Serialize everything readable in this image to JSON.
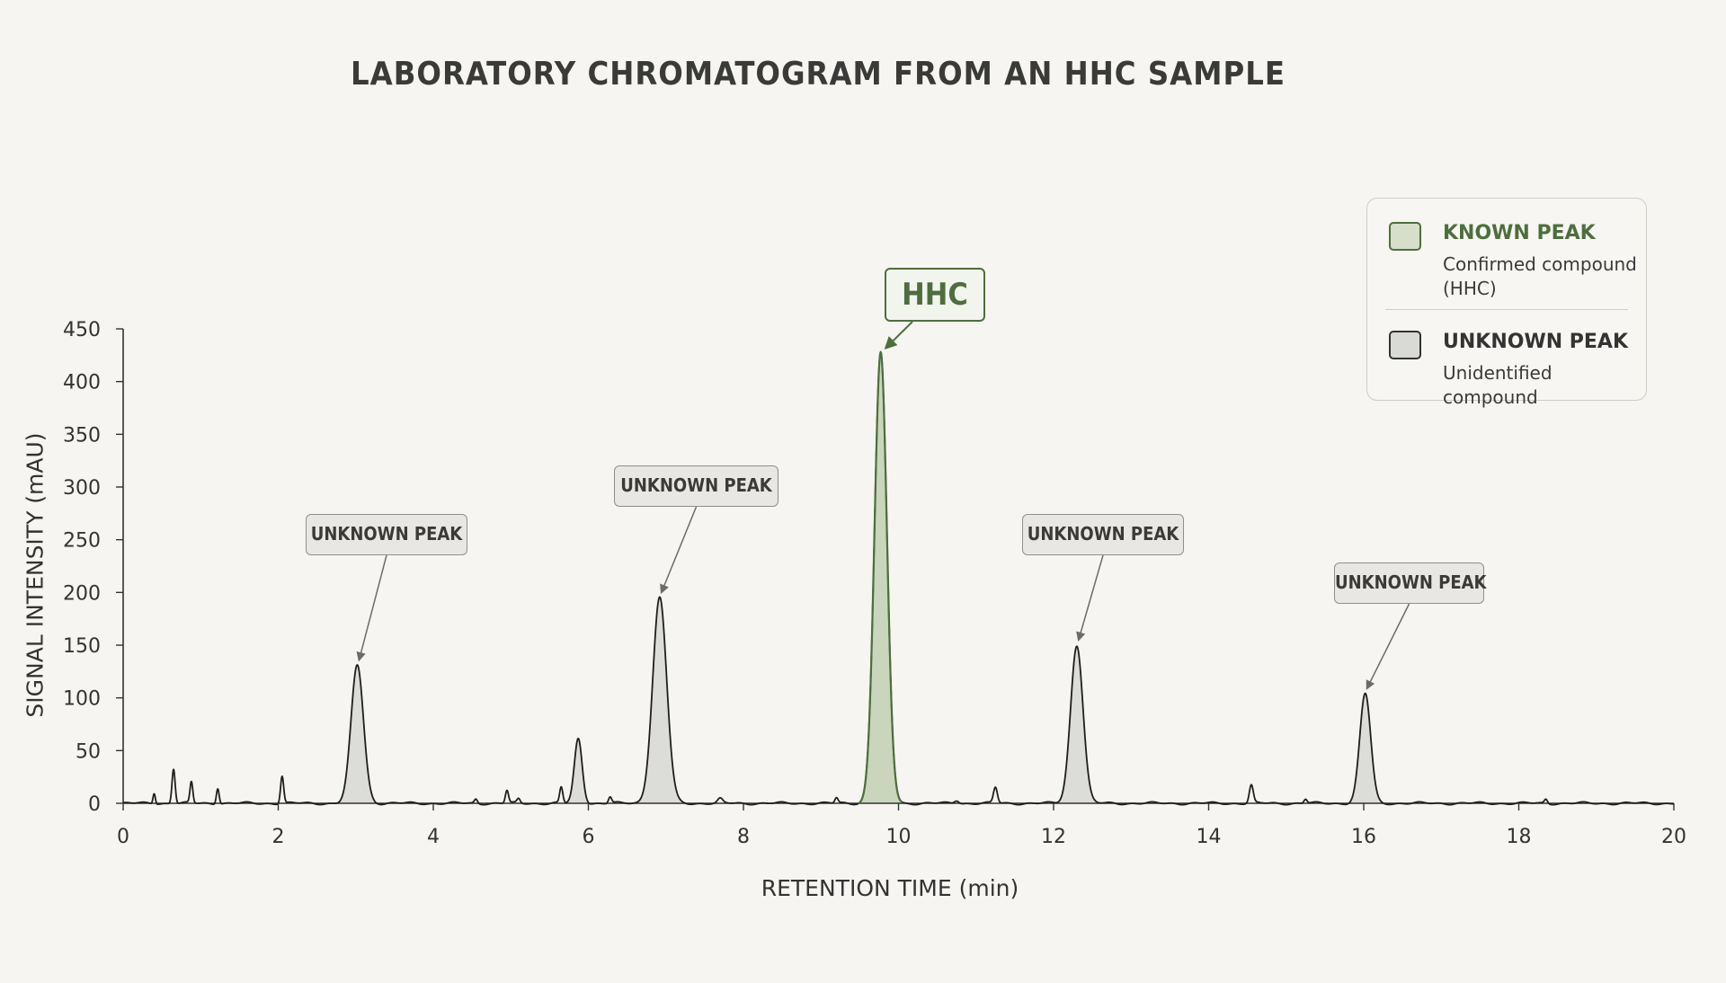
{
  "chart_data": {
    "type": "line",
    "title": "LABORATORY CHROMATOGRAM FROM AN HHC SAMPLE",
    "xlabel": "RETENTION TIME (min)",
    "ylabel": "SIGNAL INTENSITY (mAU)",
    "xlim": [
      0,
      20
    ],
    "ylim": [
      0,
      450
    ],
    "x_ticks": [
      "0",
      "2",
      "4",
      "6",
      "8",
      "10",
      "12",
      "14",
      "16",
      "18",
      "20"
    ],
    "y_ticks": [
      "0",
      "50",
      "100",
      "150",
      "200",
      "250",
      "300",
      "350",
      "400",
      "450"
    ],
    "grid": false,
    "legend_position": "top-right",
    "peaks": [
      {
        "rt": 0.4,
        "height": 10,
        "width": 0.015,
        "kind": "minor"
      },
      {
        "rt": 0.65,
        "height": 33,
        "width": 0.02,
        "kind": "minor"
      },
      {
        "rt": 0.88,
        "height": 20,
        "width": 0.018,
        "kind": "minor"
      },
      {
        "rt": 1.22,
        "height": 15,
        "width": 0.018,
        "kind": "minor"
      },
      {
        "rt": 2.05,
        "height": 26,
        "width": 0.02,
        "kind": "minor"
      },
      {
        "rt": 3.02,
        "height": 131,
        "width": 0.08,
        "kind": "unknown"
      },
      {
        "rt": 4.55,
        "height": 4,
        "width": 0.02,
        "kind": "minor"
      },
      {
        "rt": 4.95,
        "height": 12,
        "width": 0.02,
        "kind": "minor"
      },
      {
        "rt": 5.1,
        "height": 4,
        "width": 0.02,
        "kind": "minor"
      },
      {
        "rt": 5.65,
        "height": 15,
        "width": 0.02,
        "kind": "minor"
      },
      {
        "rt": 5.87,
        "height": 61,
        "width": 0.05,
        "kind": "minor"
      },
      {
        "rt": 6.28,
        "height": 6,
        "width": 0.02,
        "kind": "minor"
      },
      {
        "rt": 6.92,
        "height": 195,
        "width": 0.09,
        "kind": "unknown"
      },
      {
        "rt": 7.7,
        "height": 4,
        "width": 0.03,
        "kind": "minor"
      },
      {
        "rt": 9.2,
        "height": 5,
        "width": 0.02,
        "kind": "minor"
      },
      {
        "rt": 9.77,
        "height": 427,
        "width": 0.08,
        "kind": "known"
      },
      {
        "rt": 10.75,
        "height": 3,
        "width": 0.03,
        "kind": "minor"
      },
      {
        "rt": 11.25,
        "height": 15,
        "width": 0.025,
        "kind": "minor"
      },
      {
        "rt": 12.3,
        "height": 150,
        "width": 0.08,
        "kind": "unknown"
      },
      {
        "rt": 14.55,
        "height": 17,
        "width": 0.025,
        "kind": "minor"
      },
      {
        "rt": 15.25,
        "height": 4,
        "width": 0.02,
        "kind": "minor"
      },
      {
        "rt": 16.02,
        "height": 104,
        "width": 0.07,
        "kind": "unknown"
      },
      {
        "rt": 18.35,
        "height": 4,
        "width": 0.02,
        "kind": "minor"
      }
    ],
    "annotations": [
      {
        "text": "UNKNOWN PEAK",
        "x": 3.02,
        "y": 131,
        "kind": "unknown"
      },
      {
        "text": "UNKNOWN PEAK",
        "x": 6.92,
        "y": 195,
        "kind": "unknown"
      },
      {
        "text": "HHC",
        "x": 9.77,
        "y": 427,
        "kind": "known"
      },
      {
        "text": "UNKNOWN PEAK",
        "x": 12.3,
        "y": 150,
        "kind": "unknown"
      },
      {
        "text": "UNKNOWN PEAK",
        "x": 16.02,
        "y": 104,
        "kind": "unknown"
      }
    ],
    "legend": [
      {
        "label": "KNOWN PEAK",
        "description": "Confirmed compound (HHC)",
        "color": "#4e6e3e",
        "fill": "#d5dfca"
      },
      {
        "label": "UNKNOWN PEAK",
        "description": "Unidentified compound",
        "color": "#333333",
        "fill": "#d9dad6"
      }
    ]
  },
  "colors": {
    "background": "#f6f5f1",
    "known": "#4e6e3e",
    "known_fill": "#c9d6bc",
    "unknown_fill": "#dcdcd8",
    "trace": "#1e1e1e"
  }
}
